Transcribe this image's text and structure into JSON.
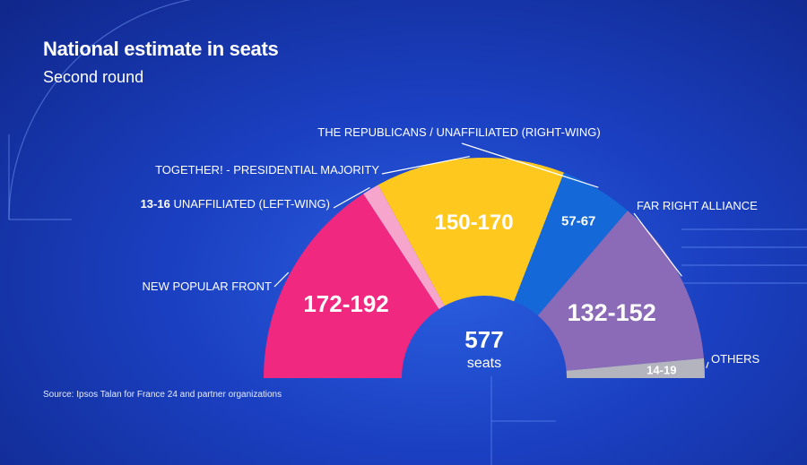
{
  "title": "National estimate in seats",
  "subtitle": "Second round",
  "source": "Source: Ipsos Talan for France 24 and partner organizations",
  "chart_data": {
    "type": "pie",
    "variant": "half-donut (hemicycle)",
    "total_seats": 577,
    "total_number": "577",
    "total_unit": "seats",
    "slices": [
      {
        "name": "NEW POPULAR FRONT",
        "range": "172-192",
        "low": 172,
        "high": 192,
        "color": "#f0287f"
      },
      {
        "name": "UNAFFILIATED (LEFT-WING)",
        "range": "13-16",
        "low": 13,
        "high": 16,
        "color": "#f6a6cc"
      },
      {
        "name": "TOGETHER! - PRESIDENTIAL MAJORITY",
        "range": "150-170",
        "low": 150,
        "high": 170,
        "color": "#ffc81e"
      },
      {
        "name": "THE REPUBLICANS / UNAFFILIATED (RIGHT-WING)",
        "range": "57-67",
        "low": 57,
        "high": 67,
        "color": "#1468d8"
      },
      {
        "name": "FAR RIGHT ALLIANCE",
        "range": "132-152",
        "low": 132,
        "high": 152,
        "color": "#8b6bb7"
      },
      {
        "name": "OTHERS",
        "range": "14-19",
        "low": 14,
        "high": 19,
        "color": "#b4b4be"
      }
    ]
  }
}
